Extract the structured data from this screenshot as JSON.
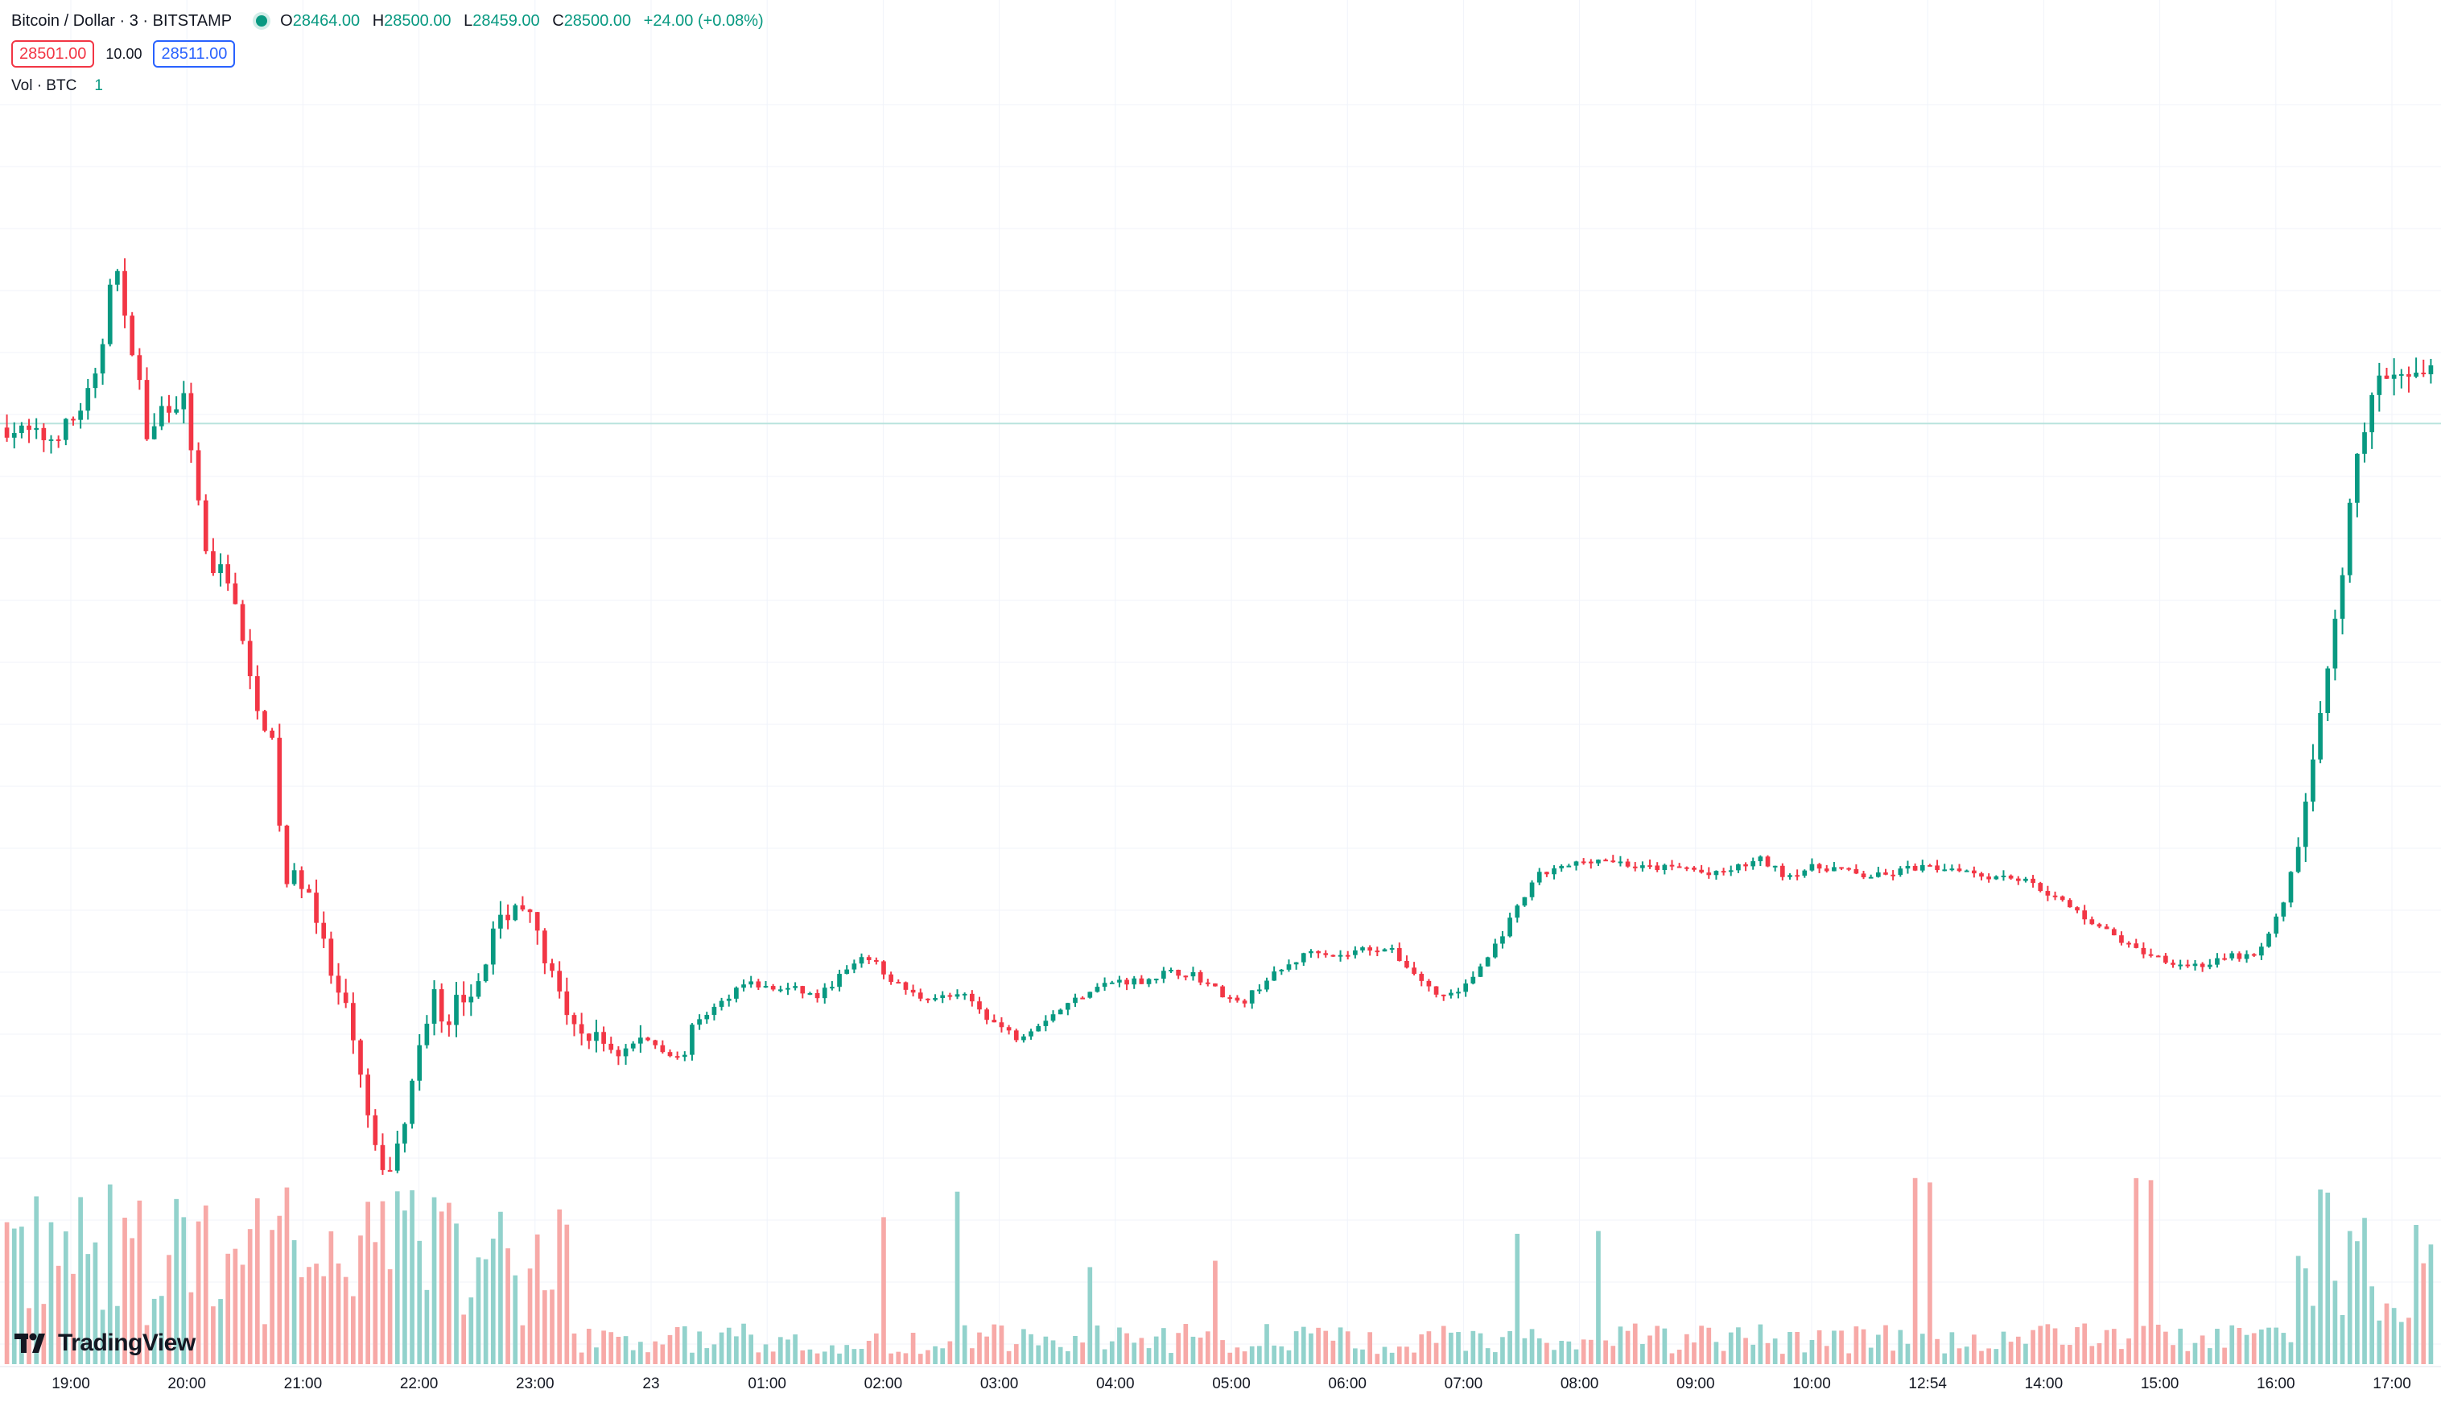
{
  "header": {
    "symbol_title": "Bitcoin / Dollar · 3 · BITSTAMP",
    "ohlc": {
      "open_label": "O",
      "open": "28464.00",
      "high_label": "H",
      "high": "28500.00",
      "low_label": "L",
      "low": "28459.00",
      "close_label": "C",
      "close": "28500.00",
      "change": "+24.00 (+0.08%)"
    },
    "sell_price": "28501.00",
    "spread": "10.00",
    "buy_price": "28511.00",
    "volume_label": "Vol · BTC",
    "volume_value": "1"
  },
  "logo_text": "TradingView",
  "colors": {
    "up": "#089981",
    "down": "#f23645",
    "up_volume": "#92d2cc",
    "down_volume": "#f7a9a7",
    "grid": "#f0f3fa",
    "price_line": "#b9e3dd"
  },
  "chart_data": {
    "type": "candlestick",
    "x_tick_labels": [
      "19:00",
      "20:00",
      "21:00",
      "22:00",
      "23:00",
      "23",
      "01:00",
      "02:00",
      "03:00",
      "04:00",
      "05:00",
      "06:00",
      "07:00",
      "08:00",
      "09:00",
      "10:00",
      "12:54",
      "14:00",
      "15:00",
      "16:00",
      "17:00"
    ],
    "price_level_current": 28500,
    "price_range_visible": [
      27450,
      28860
    ],
    "price_path": [
      [
        0,
        28495
      ],
      [
        10,
        28490
      ],
      [
        20,
        28480
      ],
      [
        30,
        28505
      ],
      [
        40,
        28560
      ],
      [
        46,
        28720
      ],
      [
        50,
        28630
      ],
      [
        55,
        28580
      ],
      [
        60,
        28470
      ],
      [
        65,
        28520
      ],
      [
        75,
        28530
      ],
      [
        80,
        28400
      ],
      [
        85,
        28300
      ],
      [
        90,
        28330
      ],
      [
        95,
        28280
      ],
      [
        100,
        28190
      ],
      [
        110,
        28100
      ],
      [
        115,
        27930
      ],
      [
        120,
        27940
      ],
      [
        125,
        27920
      ],
      [
        135,
        27800
      ],
      [
        140,
        27770
      ],
      [
        150,
        27620
      ],
      [
        155,
        27560
      ],
      [
        160,
        27600
      ],
      [
        165,
        27660
      ],
      [
        170,
        27740
      ],
      [
        175,
        27800
      ],
      [
        180,
        27730
      ],
      [
        185,
        27800
      ],
      [
        190,
        27780
      ],
      [
        200,
        27880
      ],
      [
        210,
        27910
      ],
      [
        215,
        27880
      ],
      [
        220,
        27840
      ],
      [
        230,
        27750
      ],
      [
        240,
        27740
      ],
      [
        250,
        27720
      ],
      [
        255,
        27730
      ],
      [
        260,
        27740
      ],
      [
        270,
        27720
      ],
      [
        275,
        27710
      ],
      [
        280,
        27760
      ],
      [
        290,
        27780
      ],
      [
        300,
        27810
      ],
      [
        310,
        27800
      ],
      [
        320,
        27800
      ],
      [
        330,
        27790
      ],
      [
        340,
        27820
      ],
      [
        350,
        27840
      ],
      [
        360,
        27810
      ],
      [
        370,
        27790
      ],
      [
        380,
        27790
      ],
      [
        390,
        27790
      ],
      [
        400,
        27760
      ],
      [
        410,
        27740
      ],
      [
        420,
        27760
      ],
      [
        430,
        27780
      ],
      [
        440,
        27800
      ],
      [
        450,
        27810
      ],
      [
        460,
        27810
      ],
      [
        470,
        27820
      ],
      [
        480,
        27820
      ],
      [
        490,
        27800
      ],
      [
        500,
        27780
      ],
      [
        510,
        27810
      ],
      [
        520,
        27830
      ],
      [
        530,
        27850
      ],
      [
        540,
        27840
      ],
      [
        550,
        27850
      ],
      [
        560,
        27850
      ],
      [
        570,
        27820
      ],
      [
        580,
        27790
      ],
      [
        590,
        27800
      ],
      [
        600,
        27840
      ],
      [
        610,
        27890
      ],
      [
        620,
        27940
      ],
      [
        630,
        27950
      ],
      [
        640,
        27960
      ],
      [
        650,
        27960
      ],
      [
        660,
        27950
      ],
      [
        670,
        27950
      ],
      [
        680,
        27950
      ],
      [
        690,
        27940
      ],
      [
        700,
        27950
      ],
      [
        710,
        27960
      ],
      [
        720,
        27940
      ],
      [
        730,
        27950
      ],
      [
        740,
        27950
      ],
      [
        750,
        27940
      ],
      [
        760,
        27940
      ],
      [
        770,
        27950
      ],
      [
        780,
        27950
      ],
      [
        790,
        27950
      ],
      [
        800,
        27940
      ],
      [
        810,
        27940
      ],
      [
        820,
        27930
      ],
      [
        830,
        27910
      ],
      [
        840,
        27890
      ],
      [
        850,
        27870
      ],
      [
        860,
        27850
      ],
      [
        870,
        27840
      ],
      [
        880,
        27830
      ],
      [
        890,
        27830
      ],
      [
        900,
        27840
      ],
      [
        910,
        27840
      ],
      [
        920,
        27900
      ],
      [
        930,
        28030
      ],
      [
        935,
        28120
      ],
      [
        940,
        28220
      ],
      [
        945,
        28320
      ],
      [
        950,
        28470
      ],
      [
        960,
        28560
      ],
      [
        970,
        28550
      ],
      [
        980,
        28560
      ]
    ]
  }
}
